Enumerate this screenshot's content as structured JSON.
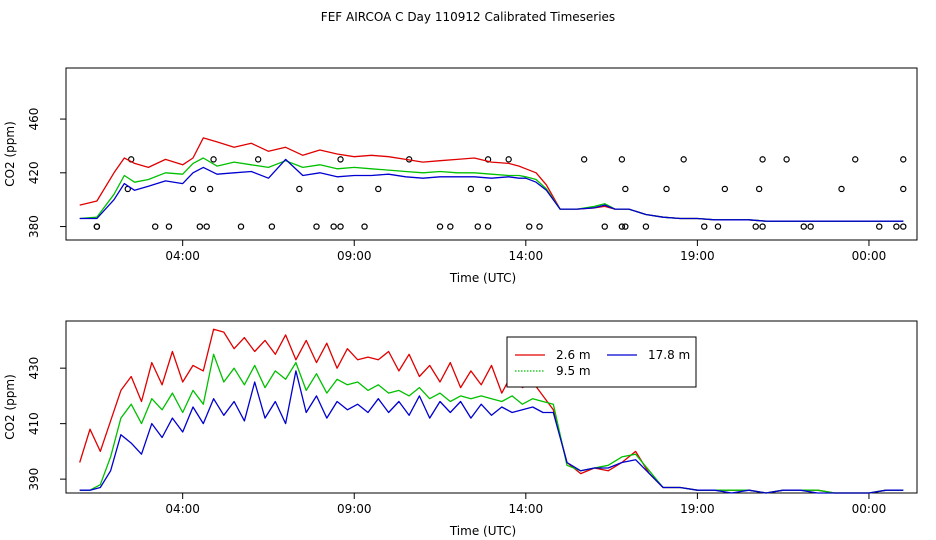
{
  "title": "FEF AIRCOA C  Day 110912  Calibrated Timeseries",
  "chart_data": [
    {
      "type": "line",
      "panel": "top",
      "xlabel": "Time (UTC)",
      "ylabel": "CO2 (ppm)",
      "xlim": [
        -0.4,
        24.4
      ],
      "ylim": [
        370,
        498
      ],
      "xticks": [
        3,
        8,
        13,
        18,
        23
      ],
      "xtick_labels": [
        "04:00",
        "09:00",
        "14:00",
        "19:00",
        "00:00"
      ],
      "yticks": [
        380,
        420,
        460
      ],
      "ytick_labels": [
        "380",
        "420",
        "460"
      ],
      "series": [
        {
          "name": "2.6 m",
          "color": "#e00000",
          "x": [
            0,
            0.5,
            1,
            1.3,
            1.6,
            2,
            2.5,
            3,
            3.3,
            3.6,
            4,
            4.5,
            5,
            5.5,
            6,
            6.5,
            7,
            7.5,
            8,
            8.5,
            9,
            9.5,
            10,
            10.5,
            11,
            11.5,
            12,
            12.5,
            12.8,
            13,
            13.3,
            13.6,
            14,
            14.5,
            15,
            15.3,
            15.6,
            16,
            16.5,
            17,
            17.5,
            18,
            18.5,
            19,
            19.5,
            20,
            20.5,
            21,
            21.5,
            22,
            22.5,
            23,
            23.5,
            24
          ],
          "y": [
            396,
            399,
            420,
            431,
            427,
            424,
            430,
            426,
            431,
            446,
            443,
            439,
            442,
            436,
            439,
            433,
            437,
            434,
            432,
            433,
            432,
            430,
            428,
            429,
            430,
            431,
            428,
            427,
            425,
            423,
            420,
            411,
            393,
            393,
            394,
            395,
            393,
            393,
            389,
            387,
            386,
            386,
            385,
            385,
            385,
            384,
            384,
            384,
            384,
            384,
            384,
            384,
            384,
            384
          ]
        },
        {
          "name": "9.5 m",
          "color": "#00c000",
          "x": [
            0,
            0.5,
            1,
            1.3,
            1.6,
            2,
            2.5,
            3,
            3.3,
            3.6,
            4,
            4.5,
            5,
            5.5,
            6,
            6.5,
            7,
            7.5,
            8,
            8.5,
            9,
            9.5,
            10,
            10.5,
            11,
            11.5,
            12,
            12.5,
            12.8,
            13,
            13.3,
            13.6,
            14,
            14.5,
            15,
            15.3,
            15.6,
            16,
            16.5,
            17,
            17.5,
            18,
            18.5,
            19,
            19.5,
            20,
            20.5,
            21,
            21.5,
            22,
            22.5,
            23,
            23.5,
            24
          ],
          "y": [
            386,
            387,
            404,
            418,
            413,
            415,
            420,
            419,
            427,
            431,
            425,
            428,
            426,
            424,
            429,
            424,
            426,
            423,
            424,
            423,
            422,
            421,
            420,
            421,
            420,
            420,
            419,
            418,
            418,
            417,
            415,
            408,
            393,
            393,
            395,
            397,
            393,
            393,
            389,
            387,
            386,
            386,
            385,
            385,
            385,
            384,
            384,
            384,
            384,
            384,
            384,
            384,
            384,
            384
          ]
        },
        {
          "name": "17.8 m",
          "color": "#0000d0",
          "x": [
            0,
            0.5,
            1,
            1.3,
            1.6,
            2,
            2.5,
            3,
            3.3,
            3.6,
            4,
            4.5,
            5,
            5.5,
            6,
            6.5,
            7,
            7.5,
            8,
            8.5,
            9,
            9.5,
            10,
            10.5,
            11,
            11.5,
            12,
            12.5,
            12.8,
            13,
            13.3,
            13.6,
            14,
            14.5,
            15,
            15.3,
            15.6,
            16,
            16.5,
            17,
            17.5,
            18,
            18.5,
            19,
            19.5,
            20,
            20.5,
            21,
            21.5,
            22,
            22.5,
            23,
            23.5,
            24
          ],
          "y": [
            386,
            386,
            400,
            412,
            407,
            410,
            414,
            412,
            420,
            424,
            419,
            420,
            421,
            416,
            430,
            418,
            420,
            417,
            418,
            418,
            419,
            417,
            416,
            417,
            417,
            417,
            416,
            417,
            416,
            416,
            413,
            407,
            393,
            393,
            394,
            396,
            393,
            393,
            389,
            387,
            386,
            386,
            385,
            385,
            385,
            384,
            384,
            384,
            384,
            384,
            384,
            384,
            384,
            384
          ]
        }
      ],
      "markers": {
        "shape": "open-circle",
        "x": [
          0.5,
          2.2,
          3.5,
          4.7,
          6.9,
          7.4,
          10.8,
          11.9,
          13.1,
          15.3,
          15.8,
          18.2,
          19.9,
          21.1,
          23.3,
          23.8,
          1.5,
          3.9,
          5.2,
          7.6,
          9.6,
          11.9,
          12.5,
          14.7,
          15.8,
          17.6,
          19.9,
          20.6,
          22.6,
          24,
          1.4,
          3.3,
          3.8,
          6.4,
          7.6,
          8.7,
          11.4,
          11.9,
          15.9,
          17.1,
          18.8,
          19.8,
          22.2,
          24,
          0.5,
          2.6,
          3.7,
          5.6,
          7.6,
          8.3,
          10.5,
          11.6,
          13.4,
          15.9,
          16.5,
          18.6,
          19.7,
          21.3,
          24
        ],
        "y": [
          380,
          380,
          380,
          380,
          380,
          380,
          380,
          380,
          380,
          380,
          380,
          380,
          380,
          380,
          380,
          380,
          430,
          430,
          430,
          430,
          430,
          430,
          430,
          430,
          430,
          430,
          430,
          430,
          430,
          430,
          408,
          408,
          408,
          408,
          408,
          408,
          408,
          408,
          408,
          408,
          408,
          408,
          408,
          408,
          380,
          380,
          380,
          380,
          380,
          380,
          380,
          380,
          380,
          380,
          380,
          380,
          380,
          380,
          380
        ]
      }
    },
    {
      "type": "line",
      "panel": "bottom",
      "xlabel": "Time (UTC)",
      "ylabel": "CO2 (ppm)",
      "xlim": [
        -0.4,
        24.4
      ],
      "ylim": [
        385,
        447
      ],
      "xticks": [
        3,
        8,
        13,
        18,
        23
      ],
      "xtick_labels": [
        "04:00",
        "09:00",
        "14:00",
        "19:00",
        "00:00"
      ],
      "yticks": [
        390,
        410,
        430
      ],
      "ytick_labels": [
        "390",
        "410",
        "430"
      ],
      "legend": {
        "position": "top-right",
        "entries": [
          "2.6 m",
          "9.5 m",
          "17.8 m"
        ]
      },
      "series": [
        {
          "name": "2.6 m",
          "color": "#e00000",
          "x": [
            0,
            0.3,
            0.6,
            0.9,
            1.2,
            1.5,
            1.8,
            2.1,
            2.4,
            2.7,
            3,
            3.3,
            3.6,
            3.9,
            4.2,
            4.5,
            4.8,
            5.1,
            5.4,
            5.7,
            6,
            6.3,
            6.6,
            6.9,
            7.2,
            7.5,
            7.8,
            8.1,
            8.4,
            8.7,
            9,
            9.3,
            9.6,
            9.9,
            10.2,
            10.5,
            10.8,
            11.1,
            11.4,
            11.7,
            12,
            12.3,
            12.6,
            12.9,
            13.2,
            13.5,
            13.8,
            14.2,
            14.6,
            15,
            15.4,
            15.8,
            16.2,
            16.6,
            17,
            17.5,
            18,
            18.5,
            19,
            19.5,
            20,
            20.5,
            21,
            21.5,
            22,
            22.5,
            23,
            23.5,
            24
          ],
          "y": [
            396,
            408,
            400,
            411,
            422,
            427,
            418,
            432,
            424,
            436,
            425,
            431,
            429,
            444,
            443,
            437,
            441,
            436,
            440,
            435,
            442,
            433,
            440,
            432,
            439,
            430,
            437,
            433,
            434,
            433,
            436,
            429,
            435,
            427,
            431,
            425,
            432,
            423,
            429,
            424,
            431,
            421,
            428,
            423,
            425,
            420,
            415,
            396,
            392,
            394,
            393,
            396,
            400,
            392,
            387,
            387,
            386,
            386,
            386,
            386,
            385,
            386,
            386,
            386,
            385,
            385,
            385,
            386,
            386
          ]
        },
        {
          "name": "9.5 m",
          "color": "#00c000",
          "x": [
            0,
            0.3,
            0.6,
            0.9,
            1.2,
            1.5,
            1.8,
            2.1,
            2.4,
            2.7,
            3,
            3.3,
            3.6,
            3.9,
            4.2,
            4.5,
            4.8,
            5.1,
            5.4,
            5.7,
            6,
            6.3,
            6.6,
            6.9,
            7.2,
            7.5,
            7.8,
            8.1,
            8.4,
            8.7,
            9,
            9.3,
            9.6,
            9.9,
            10.2,
            10.5,
            10.8,
            11.1,
            11.4,
            11.7,
            12,
            12.3,
            12.6,
            12.9,
            13.2,
            13.5,
            13.8,
            14.2,
            14.6,
            15,
            15.4,
            15.8,
            16.2,
            16.6,
            17,
            17.5,
            18,
            18.5,
            19,
            19.5,
            20,
            20.5,
            21,
            21.5,
            22,
            22.5,
            23,
            23.5,
            24
          ],
          "y": [
            386,
            386,
            388,
            398,
            412,
            417,
            410,
            419,
            415,
            421,
            414,
            422,
            417,
            435,
            425,
            430,
            424,
            431,
            423,
            429,
            426,
            432,
            422,
            428,
            421,
            426,
            424,
            425,
            422,
            424,
            421,
            422,
            420,
            423,
            419,
            421,
            418,
            420,
            419,
            420,
            419,
            418,
            420,
            417,
            419,
            418,
            417,
            395,
            393,
            394,
            395,
            398,
            399,
            393,
            387,
            387,
            386,
            386,
            386,
            386,
            385,
            386,
            386,
            386,
            385,
            385,
            385,
            386,
            386
          ]
        },
        {
          "name": "17.8 m",
          "color": "#0000d0",
          "x": [
            0,
            0.3,
            0.6,
            0.9,
            1.2,
            1.5,
            1.8,
            2.1,
            2.4,
            2.7,
            3,
            3.3,
            3.6,
            3.9,
            4.2,
            4.5,
            4.8,
            5.1,
            5.4,
            5.7,
            6,
            6.3,
            6.6,
            6.9,
            7.2,
            7.5,
            7.8,
            8.1,
            8.4,
            8.7,
            9,
            9.3,
            9.6,
            9.9,
            10.2,
            10.5,
            10.8,
            11.1,
            11.4,
            11.7,
            12,
            12.3,
            12.6,
            12.9,
            13.2,
            13.5,
            13.8,
            14.2,
            14.6,
            15,
            15.4,
            15.8,
            16.2,
            16.6,
            17,
            17.5,
            18,
            18.5,
            19,
            19.5,
            20,
            20.5,
            21,
            21.5,
            22,
            22.5,
            23,
            23.5,
            24
          ],
          "y": [
            386,
            386,
            387,
            393,
            406,
            403,
            399,
            410,
            405,
            412,
            407,
            416,
            410,
            419,
            413,
            418,
            411,
            425,
            412,
            418,
            410,
            429,
            414,
            420,
            412,
            418,
            415,
            417,
            414,
            419,
            414,
            418,
            413,
            420,
            412,
            418,
            414,
            418,
            412,
            417,
            413,
            416,
            414,
            415,
            416,
            414,
            414,
            396,
            393,
            394,
            394,
            396,
            397,
            392,
            387,
            387,
            386,
            386,
            385,
            386,
            385,
            386,
            386,
            385,
            385,
            385,
            385,
            386,
            386
          ]
        }
      ]
    }
  ]
}
